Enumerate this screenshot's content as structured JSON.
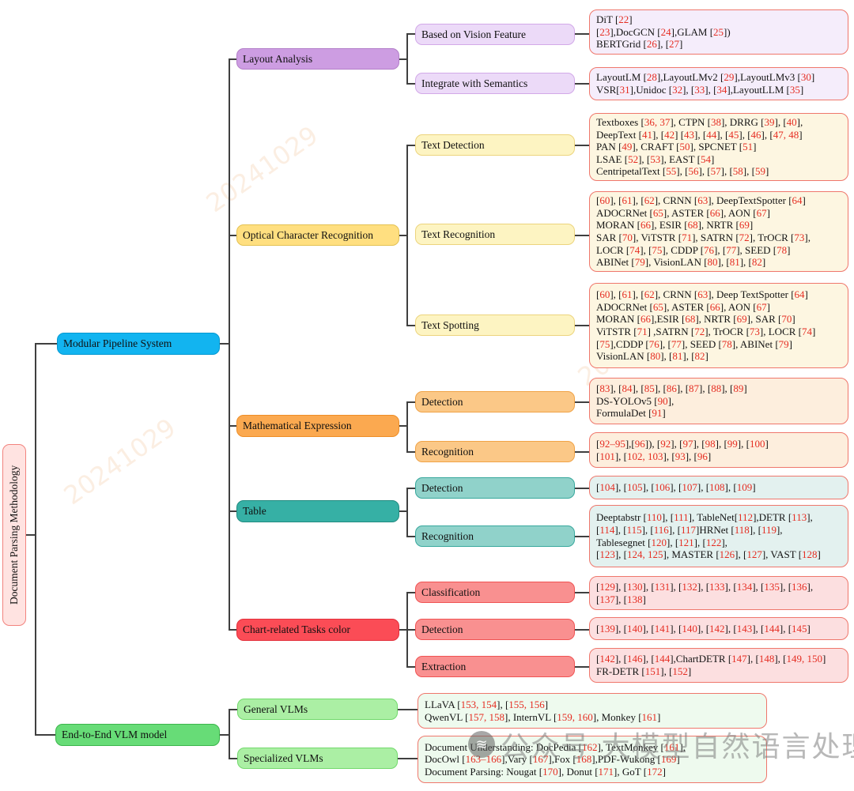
{
  "colors": {
    "line": "#3f3f3f",
    "cite_border": "#ef776c",
    "cite_red": "#e52d22",
    "root_fill": "#ffe3e1",
    "root_border": "#f2837e",
    "blue_fill": "#12b4f0",
    "blue_border": "#0599d2",
    "green_fill": "#67dc77",
    "green_border": "#3cb54c",
    "greenL_fill": "#abefa4",
    "greenL_border": "#72d96c",
    "purple_fill": "#cd9de2",
    "purple_border": "#b37fc9",
    "purpleL_fill": "#ecdaf8",
    "purpleL_border": "#d2a9e8",
    "yellow_fill": "#ffdf80",
    "yellow_border": "#e4c253",
    "yellowL_fill": "#fdf4c2",
    "yellowL_border": "#ecd47d",
    "orange_fill": "#fba950",
    "orange_border": "#ee8e27",
    "orangeL_fill": "#fbc887",
    "orangeL_border": "#f0a347",
    "teal_fill": "#36b0a5",
    "teal_border": "#218b80",
    "tealL_fill": "#90d2ca",
    "tealL_border": "#38a89d",
    "red_fill": "#fb4c56",
    "red_border": "#e3303b",
    "redL_fill": "#f99090",
    "redL_border": "#f05353",
    "cite_lav": "#f5edfb",
    "cite_cream": "#fdf6e1",
    "cite_orange": "#fdeedd",
    "cite_teal": "#e3f1ef",
    "cite_pink": "#fcdfe0",
    "cite_green": "#eefaee"
  },
  "nodes": {
    "root": "Document Parsing Methodology",
    "modular": "Modular Pipeline System",
    "end2end": "End-to-End VLM model",
    "layout": "Layout Analysis",
    "ocr": "Optical Character Recognition",
    "math": "Mathematical Expression",
    "table": "Table",
    "chart": "Chart-related Tasks color",
    "vision": "Based on Vision Feature",
    "semantics": "Integrate with Semantics",
    "text_detection": "Text Detection",
    "text_recognition": "Text Recognition",
    "text_spotting": "Text Spotting",
    "math_detection": "Detection",
    "math_recognition": "Recognition",
    "table_detection": "Detection",
    "table_recognition": "Recognition",
    "chart_classification": "Classification",
    "chart_detection": "Detection",
    "chart_extraction": "Extraction",
    "general_vlms": "General VLMs",
    "specialized_vlms": "Specialized VLMs"
  },
  "citations": {
    "layout_vision": [
      "DiT [22]",
      " [23],DocGCN [24],GLAM [25])",
      "BERTGrid [26], [27]"
    ],
    "layout_semantics": [
      "LayoutLM [28],LayoutLMv2 [29],LayoutLMv3 [30]",
      "VSR[31],Unidoc [32], [33], [34],LayoutLLM [35]"
    ],
    "text_detection": [
      "Textboxes [36, 37], CTPN [38], DRRG [39], [40],",
      "DeepText [41], [42]  [43], [44], [45], [46], [47, 48]",
      "PAN [49], CRAFT [50], SPCNET [51]",
      "LSAE [52], [53], EAST [54]",
      "CentripetalText [55],  [56], [57], [58], [59]"
    ],
    "text_recognition": [
      " [60], [61], [62], CRNN [63], DeepTextSpotter [64]",
      "ADOCRNet [65], ASTER [66], AON [67]",
      "MORAN [66], ESIR [68], NRTR [69]",
      "SAR [70], ViTSTR [71], SATRN [72], TrOCR [73],",
      "LOCR [74], [75], CDDP [76], [77], SEED [78]",
      "ABINet [79], VisionLAN [80], [81], [82]"
    ],
    "text_spotting": [
      " [60], [61], [62], CRNN [63], Deep TextSpotter [64]",
      "ADOCRNet [65], ASTER [66], AON [67]",
      "MORAN [66],ESIR [68], NRTR [69], SAR [70]",
      "ViTSTR [71] ,SATRN [72], TrOCR [73], LOCR [74]",
      " [75],CDDP [76], [77], SEED [78], ABINet [79]",
      "VisionLAN [80], [81], [82]"
    ],
    "math_detection": [
      "[83], [84], [85], [86], [87], [88], [89]",
      "DS-YOLOv5 [90],",
      "FormulaDet [91]"
    ],
    "math_recognition": [
      "[92–95],[96]), [92], [97], [98], [99], [100]",
      "[101], [102, 103], [93], [96]"
    ],
    "table_detection": [
      "[104], [105], [106], [107], [108], [109]"
    ],
    "table_recognition": [
      "Deeptabstr [110], [111], TableNet[112],DETR [113],",
      " [114], [115], [116], [117]HRNet [118], [119],",
      "Tablesegnet [120], [121], [122],",
      " [123], [124, 125], MASTER [126], [127], VAST [128]"
    ],
    "chart_classification": [
      "[129], [130], [131], [132], [133], [134], [135], [136],",
      " [137], [138]"
    ],
    "chart_detection": [
      "[139], [140], [141], [140], [142], [143], [144], [145]"
    ],
    "chart_extraction": [
      " [142], [146], [144],ChartDETR [147], [148], [149, 150]",
      "FR-DETR  [151],  [152]"
    ],
    "general_vlms": [
      "LLaVA [153, 154], [155, 156]",
      "QwenVL [157, 158], InternVL [159, 160], Monkey [161]"
    ],
    "specialized_vlms": [
      "Document Understanding:  DocPedia [162], TextMonkey [161],",
      "DocOwl [163–166],Vary [167],Fox [168],PDF-Wukong [169]",
      "Document Parsing:  Nougat [170], Donut [171], GoT [172]"
    ]
  },
  "watermark": {
    "text": "公众号 大模型自然语言处理",
    "stamp": "20241029"
  }
}
